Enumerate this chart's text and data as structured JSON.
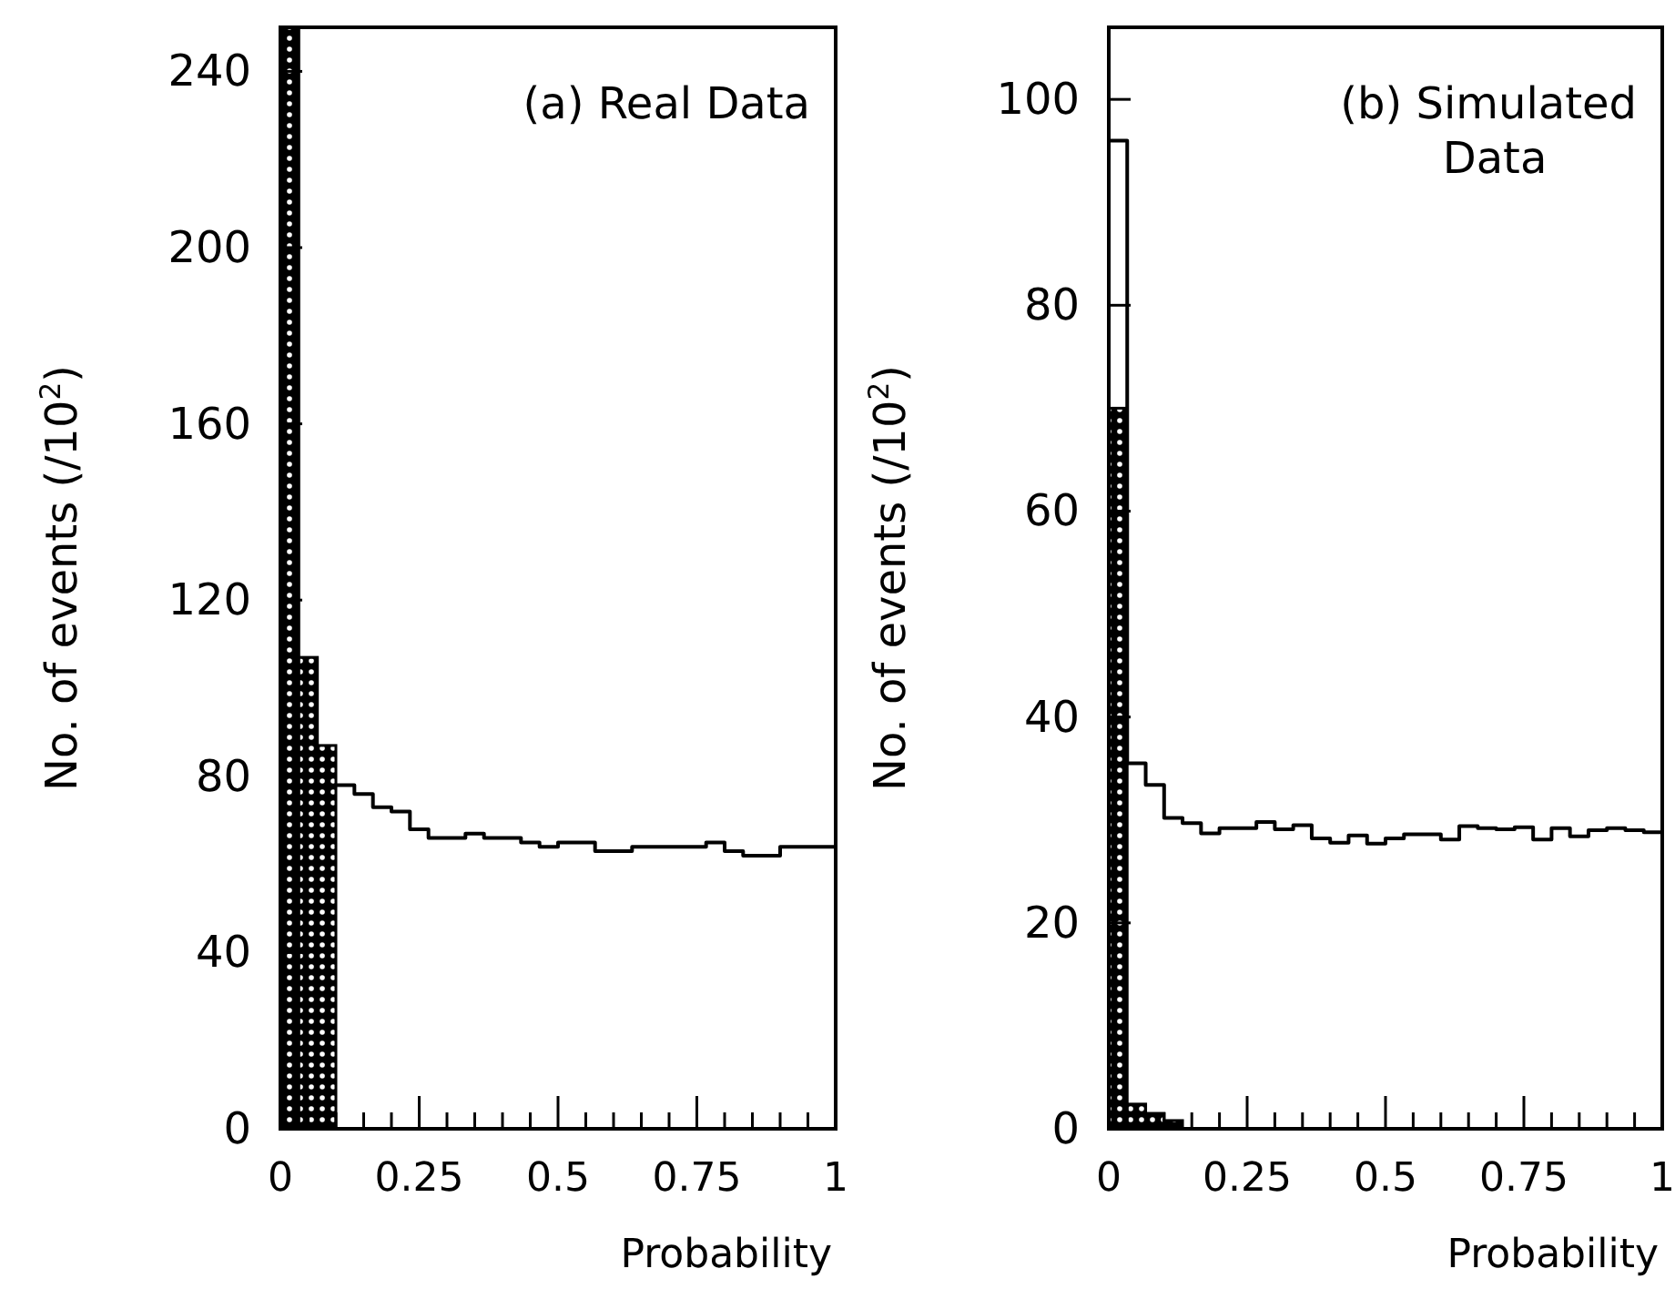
{
  "chart_data": [
    {
      "type": "histogram",
      "title": "(a) Real Data",
      "xlabel": "Probability",
      "ylabel": "No. of events (/10$^{2}$)",
      "bins": [
        0,
        0.0333,
        0.0667,
        0.1,
        0.1333,
        0.1667,
        0.2,
        0.2333,
        0.2667,
        0.3,
        0.3333,
        0.3667,
        0.4,
        0.4333,
        0.4667,
        0.5,
        0.5333,
        0.5667,
        0.6,
        0.6333,
        0.6667,
        0.7,
        0.7333,
        0.7667,
        0.8,
        0.8333,
        0.8667,
        0.9,
        0.9333,
        0.9667,
        1
      ],
      "series": [
        {
          "type": "histogram",
          "color": "#000000",
          "values": [
            250,
            107,
            87,
            0,
            0,
            0,
            0,
            0,
            0,
            0,
            0,
            0,
            0,
            0,
            0,
            0,
            0,
            0,
            0,
            0,
            0,
            0,
            0,
            0,
            0,
            0,
            0,
            0,
            0,
            0
          ]
        },
        {
          "type": "step",
          "color": "#000000",
          "x": [
            0.1,
            0.1333,
            0.1667,
            0.2,
            0.2333,
            0.2667,
            0.3,
            0.3333,
            0.3667,
            0.4,
            0.4333,
            0.4667,
            0.5,
            0.5333,
            0.5667,
            0.6,
            0.6333,
            0.6667,
            0.7,
            0.7333,
            0.7667,
            0.8,
            0.8333,
            0.8667,
            0.9,
            0.9333,
            0.9667,
            1
          ],
          "values": [
            78,
            76,
            73,
            72,
            68,
            66,
            66,
            67,
            66,
            66,
            65,
            64,
            65,
            65,
            63,
            63,
            64,
            64,
            64,
            64,
            65,
            63,
            62,
            62,
            64,
            64,
            64,
            64
          ]
        }
      ],
      "xlim": [
        0,
        1
      ],
      "ylim": [
        0,
        250
      ],
      "xticks": [
        0,
        {
          "value": 0.05,
          "label": null
        },
        {
          "value": 0.1,
          "label": null
        },
        {
          "value": 0.15,
          "label": null
        },
        {
          "value": 0.2,
          "label": null
        },
        0.25,
        {
          "value": 0.3,
          "label": null
        },
        {
          "value": 0.35,
          "label": null
        },
        {
          "value": 0.4,
          "label": null
        },
        {
          "value": 0.45,
          "label": null
        },
        0.5,
        {
          "value": 0.55,
          "label": null
        },
        {
          "value": 0.6,
          "label": null
        },
        {
          "value": 0.65,
          "label": null
        },
        {
          "value": 0.7,
          "label": null
        },
        0.75,
        {
          "value": 0.8,
          "label": null
        },
        {
          "value": 0.85,
          "label": null
        },
        {
          "value": 0.9,
          "label": null
        },
        {
          "value": 0.95,
          "label": null
        },
        1
      ],
      "yticks": [
        0,
        40,
        80,
        120,
        160,
        200,
        240
      ]
    },
    {
      "type": "histogram",
      "title": "(b) Simulated Data",
      "xlabel": "Probability",
      "ylabel": "No. of events (/10$^{2}$)",
      "bins": [
        0,
        0.0333,
        0.0667,
        0.1,
        0.1333,
        0.1667,
        0.2,
        0.2333,
        0.2667,
        0.3,
        0.3333,
        0.3667,
        0.4,
        0.4333,
        0.4667,
        0.5,
        0.5333,
        0.5667,
        0.6,
        0.6333,
        0.6667,
        0.7,
        0.7333,
        0.7667,
        0.8,
        0.8333,
        0.8667,
        0.9,
        0.9333,
        0.9667,
        1
      ],
      "series": [
        {
          "type": "step",
          "color": "#000000",
          "x": [
            0,
            0.0333,
            0.0667,
            0.1,
            0.1333,
            0.1667,
            0.2,
            0.2333,
            0.2667,
            0.3,
            0.3333,
            0.3667,
            0.4,
            0.4333,
            0.4667,
            0.5,
            0.5333,
            0.5667,
            0.6,
            0.6333,
            0.6667,
            0.7,
            0.7333,
            0.7667,
            0.8,
            0.8333,
            0.8667,
            0.9,
            0.9333,
            0.9667,
            1
          ],
          "values": [
            96,
            35.5,
            33.4,
            30.2,
            29.7,
            28.7,
            29.2,
            29.2,
            29.8,
            29.1,
            29.5,
            28.2,
            27.8,
            28.5,
            27.7,
            28.2,
            28.6,
            28.6,
            28.1,
            29.4,
            29.2,
            29.1,
            29.3,
            28.1,
            29.2,
            28.4,
            29,
            29.2,
            29,
            28.8,
            28.8
          ]
        },
        {
          "type": "histogram",
          "color": "#000000",
          "values": [
            70,
            2.4,
            1.5,
            0.8,
            null,
            null,
            null,
            null,
            0,
            0,
            0,
            0,
            0,
            0,
            0,
            0,
            0,
            0,
            0,
            0,
            0,
            0,
            0,
            0,
            0,
            0,
            0,
            0,
            0,
            0
          ]
        }
      ],
      "xlim": [
        0,
        1
      ],
      "ylim": [
        0,
        107
      ],
      "xticks": [
        0,
        {
          "value": 0.05,
          "label": null
        },
        {
          "value": 0.1,
          "label": null
        },
        {
          "value": 0.15,
          "label": null
        },
        {
          "value": 0.2,
          "label": null
        },
        0.25,
        {
          "value": 0.3,
          "label": null
        },
        {
          "value": 0.35,
          "label": null
        },
        {
          "value": 0.4,
          "label": null
        },
        {
          "value": 0.45,
          "label": null
        },
        0.5,
        {
          "value": 0.55,
          "label": null
        },
        {
          "value": 0.6,
          "label": null
        },
        {
          "value": 0.65,
          "label": null
        },
        {
          "value": 0.7,
          "label": null
        },
        0.75,
        {
          "value": 0.8,
          "label": null
        },
        {
          "value": 0.85,
          "label": null
        },
        {
          "value": 0.9,
          "label": null
        },
        {
          "value": 0.95,
          "label": null
        },
        1
      ],
      "yticks": [
        0,
        20,
        40,
        60,
        80,
        100
      ]
    }
  ]
}
